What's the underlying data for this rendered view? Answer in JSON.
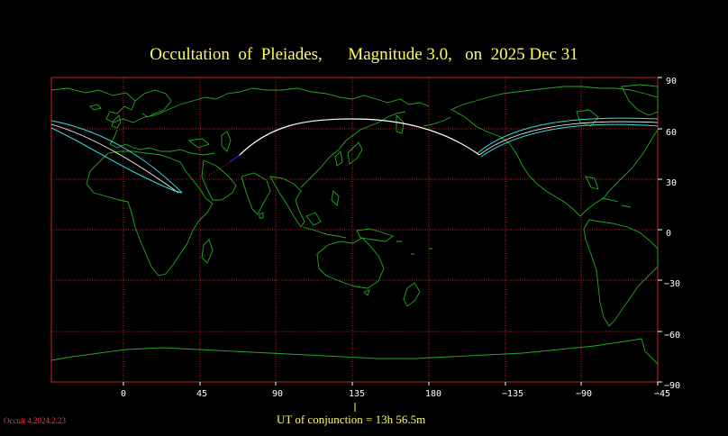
{
  "title": "Occultation  of  Pleiades,      Magnitude 3.0,   on  2025 Dec 31",
  "lon_ticks": [
    "0",
    "45",
    "90",
    "135",
    "180",
    "−135",
    "−90",
    "−45"
  ],
  "lat_ticks": [
    "90",
    "60",
    "30",
    "0",
    "−30",
    "−60",
    "−90"
  ],
  "conjunction_label": "UT of conjunction = 13h 56.5m",
  "version": "Occult 4.2024.2.23",
  "colors": {
    "background": "#000000",
    "grid": "#cc2222",
    "coastline": "#22aa22",
    "limit_lines": "#33dddd",
    "central_line": "#ffffff",
    "text": "#ffff55",
    "version_text": "#ff3333"
  }
}
